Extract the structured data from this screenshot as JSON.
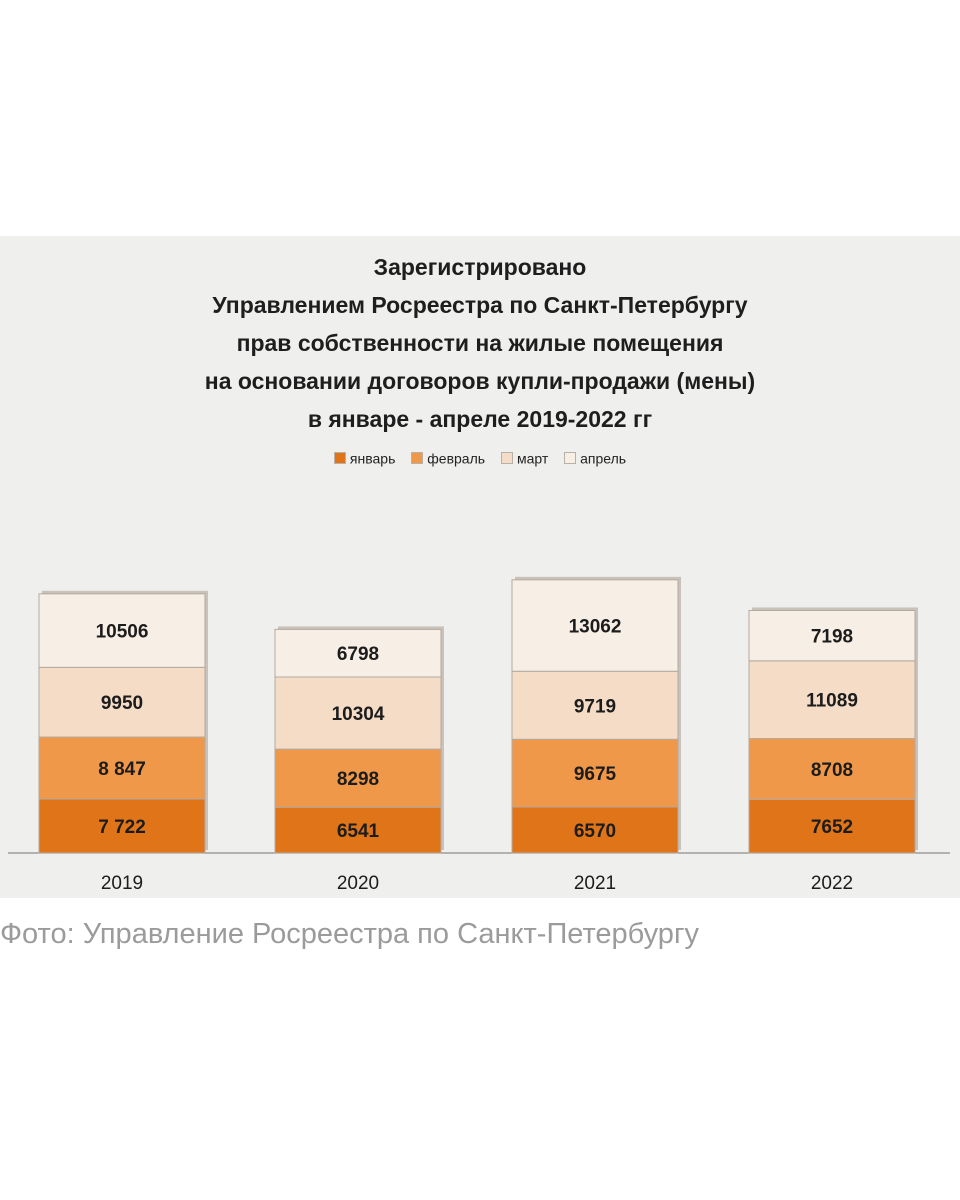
{
  "chart_data": {
    "type": "bar",
    "stacked": true,
    "title_lines": [
      "Зарегистрировано",
      "Управлением Росреестра по Санкт-Петербургу",
      "прав собственности на жилые помещения",
      "на основании договоров купли-продажи (мены)",
      "в январе - апреле 2019-2022 гг"
    ],
    "categories": [
      "2019",
      "2020",
      "2021",
      "2022"
    ],
    "series": [
      {
        "name": "январь",
        "values": [
          7722,
          6541,
          6570,
          7652
        ],
        "labels": [
          "7 722",
          "6541",
          "6570",
          "7652"
        ],
        "color": "#e07418"
      },
      {
        "name": "февраль",
        "values": [
          8847,
          8298,
          9675,
          8708
        ],
        "labels": [
          "8 847",
          "8298",
          "9675",
          "8708"
        ],
        "color": "#f0984a"
      },
      {
        "name": "март",
        "values": [
          9950,
          10304,
          9719,
          11089
        ],
        "labels": [
          "9950",
          "10304",
          "9719",
          "11089"
        ],
        "color": "#f4dcc6"
      },
      {
        "name": "апрель",
        "values": [
          10506,
          6798,
          13062,
          7198
        ],
        "labels": [
          "10506",
          "6798",
          "13062",
          "7198"
        ],
        "color": "#f7efe6"
      }
    ],
    "legend_position": "top-center",
    "grid": false
  },
  "caption": "Фото: Управление Росреестра по Санкт-Петербургу"
}
